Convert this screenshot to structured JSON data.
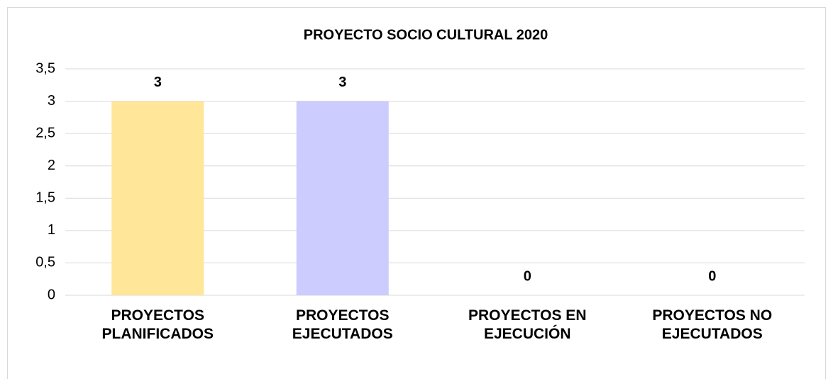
{
  "chart_data": {
    "type": "bar",
    "title": "PROYECTO SOCIO CULTURAL 2020",
    "categories": [
      "PROYECTOS PLANIFICADOS",
      "PROYECTOS EJECUTADOS",
      "PROYECTOS EN EJECUCIÓN",
      "PROYECTOS NO EJECUTADOS"
    ],
    "values": [
      3,
      3,
      0,
      0
    ],
    "colors": [
      "#ffe699",
      "#ccccff",
      "#c5e0b4",
      "#f8cbad"
    ],
    "ylim": [
      0,
      3.5
    ],
    "yticks": [
      0,
      {
        "value": 0.5,
        "label": "0,5"
      },
      1,
      {
        "value": 1.5,
        "label": "1,5"
      },
      2,
      {
        "value": 2.5,
        "label": "2,5"
      },
      3,
      {
        "value": 3.5,
        "label": "3,5"
      }
    ],
    "grid": true
  }
}
